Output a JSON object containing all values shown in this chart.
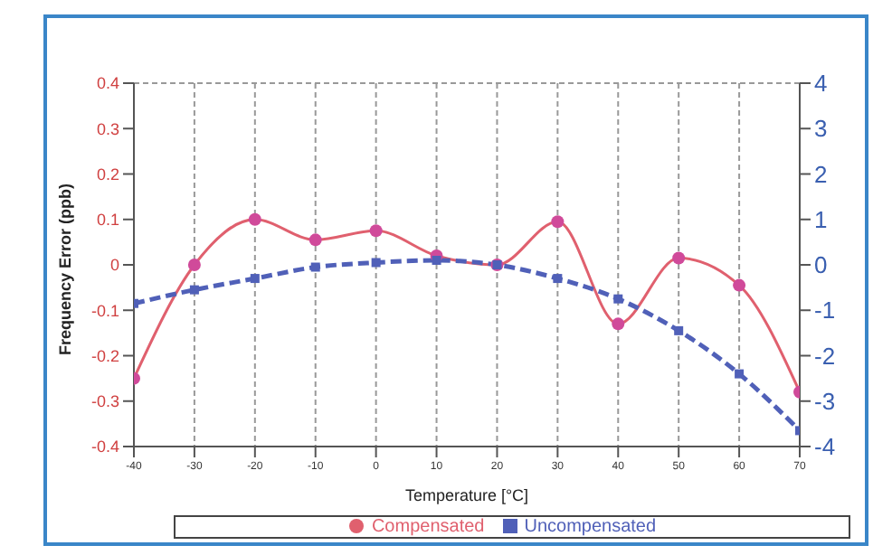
{
  "chart_data": {
    "type": "line",
    "xlabel": "Temperature [°C]",
    "ylabel": "Frequency Error (ppb)",
    "x": [
      -40,
      -30,
      -20,
      -10,
      0,
      10,
      20,
      30,
      40,
      50,
      60,
      70
    ],
    "series": [
      {
        "name": "Compensated",
        "color": "#e0606e",
        "values": [
          -0.25,
          0,
          0.1,
          0.055,
          0.075,
          0.02,
          0,
          0.095,
          -0.13,
          0.015,
          -0.045,
          -0.28
        ],
        "marker": "circle",
        "line_style": "solid"
      },
      {
        "name": "Uncompensated",
        "color": "#5060b8",
        "axis": "y2",
        "values": [
          -0.85,
          -0.55,
          -0.3,
          -0.05,
          0.05,
          0.1,
          0,
          -0.3,
          -0.75,
          -1.45,
          -2.4,
          -3.65
        ],
        "marker": "square",
        "line_style": "dashed"
      }
    ],
    "xlim": [
      -40,
      70
    ],
    "xticks": [
      -40,
      -30,
      -20,
      -10,
      0,
      10,
      20,
      30,
      40,
      50,
      60,
      70
    ],
    "ylim": [
      -0.4,
      0.4
    ],
    "yticks": [
      -0.4,
      -0.3,
      -0.2,
      -0.1,
      0,
      0.1,
      0.2,
      0.3,
      0.4
    ],
    "y2lim": [
      -4,
      4
    ],
    "y2ticks": [
      -4,
      -3,
      -2,
      -1,
      0,
      1,
      2,
      3,
      4
    ],
    "grid": true,
    "legend": "bottom"
  }
}
